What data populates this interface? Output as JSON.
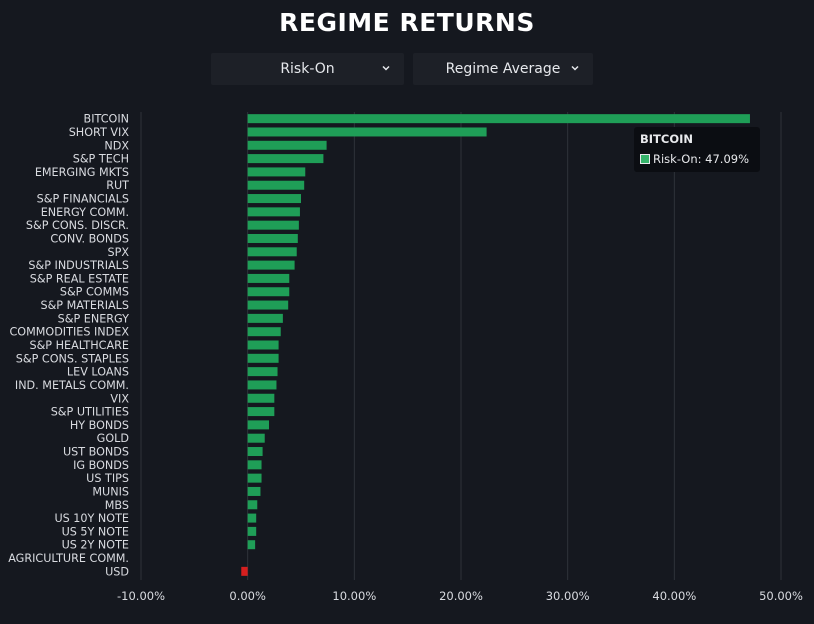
{
  "header": {
    "title": "REGIME RETURNS"
  },
  "controls": {
    "regime_select": {
      "value": "Risk-On",
      "icon": "chevron-down-icon"
    },
    "metric_select": {
      "value": "Regime Average",
      "icon": "chevron-down-icon"
    }
  },
  "tooltip": {
    "title": "BITCOIN",
    "series_label": "Risk-On: 47.09%",
    "swatch_color": "#35b36a"
  },
  "colors": {
    "positive": "#1f9e57",
    "negative": "#d61f1f",
    "background": "#15181f",
    "grid": "#2e323a"
  },
  "chart_data": {
    "type": "bar",
    "orientation": "horizontal",
    "title": "REGIME RETURNS",
    "xlabel": "",
    "ylabel": "",
    "xlim": [
      -10,
      50
    ],
    "xticks": [
      "-10.00%",
      "0.00%",
      "10.00%",
      "20.00%",
      "30.00%",
      "40.00%",
      "50.00%"
    ],
    "grid": true,
    "categories": [
      "BITCOIN",
      "SHORT VIX",
      "NDX",
      "S&P TECH",
      "EMERGING MKTS",
      "RUT",
      "S&P FINANCIALS",
      "ENERGY COMM.",
      "S&P CONS. DISCR.",
      "CONV. BONDS",
      "SPX",
      "S&P INDUSTRIALS",
      "S&P REAL ESTATE",
      "S&P COMMS",
      "S&P MATERIALS",
      "S&P ENERGY",
      "COMMODITIES INDEX",
      "S&P HEALTHCARE",
      "S&P CONS. STAPLES",
      "LEV LOANS",
      "IND. METALS COMM.",
      "VIX",
      "S&P UTILITIES",
      "HY BONDS",
      "GOLD",
      "UST BONDS",
      "IG BONDS",
      "US TIPS",
      "MUNIS",
      "MBS",
      "US 10Y NOTE",
      "US 5Y NOTE",
      "US 2Y NOTE",
      "AGRICULTURE COMM.",
      "USD"
    ],
    "series": [
      {
        "name": "Risk-On",
        "values": [
          47.09,
          22.4,
          7.4,
          7.1,
          5.4,
          5.3,
          5.0,
          4.9,
          4.8,
          4.7,
          4.6,
          4.4,
          3.9,
          3.9,
          3.8,
          3.3,
          3.1,
          2.9,
          2.9,
          2.8,
          2.7,
          2.5,
          2.5,
          2.0,
          1.6,
          1.4,
          1.3,
          1.3,
          1.2,
          0.9,
          0.8,
          0.8,
          0.7,
          0.0,
          -0.6
        ]
      }
    ]
  }
}
